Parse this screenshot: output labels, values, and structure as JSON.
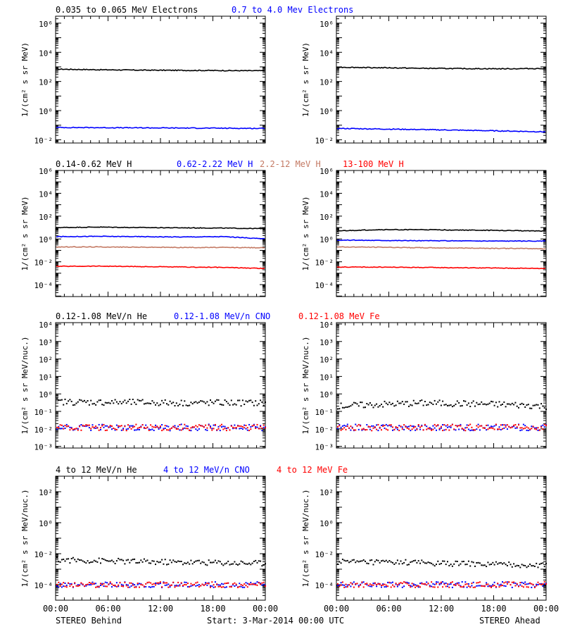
{
  "colors": {
    "black": "#000000",
    "blue": "#0000ff",
    "tan": "#c47a64",
    "red": "#ff0000"
  },
  "footer": {
    "left": "STEREO Behind",
    "center": "Start:  3-Mar-2014 00:00 UTC",
    "right": "STEREO Ahead"
  },
  "x_ticks": [
    "00:00",
    "06:00",
    "12:00",
    "18:00",
    "00:00"
  ],
  "chart_data": [
    {
      "id": "electrons",
      "type": "line",
      "log_y": true,
      "ylabel": "1/(cm² s sr MeV)",
      "ylim": [
        0.006,
        3000000
      ],
      "y_ticks": [
        {
          "v": 0.01,
          "label": "10⁻²"
        },
        {
          "v": 1,
          "label": "10⁰"
        },
        {
          "v": 100,
          "label": "10²"
        },
        {
          "v": 10000,
          "label": "10⁴"
        },
        {
          "v": 1000000,
          "label": "10⁶"
        }
      ],
      "series": [
        {
          "name": "0.035 to 0.065 MeV Electrons",
          "color": "#000000",
          "behind": [
            700,
            640,
            600,
            580,
            560,
            540
          ],
          "ahead": [
            950,
            880,
            800,
            760,
            740,
            780
          ]
        },
        {
          "name": "0.7 to 4.0 Mev Electrons",
          "color": "#0000ff",
          "behind": [
            0.07,
            0.068,
            0.066,
            0.064,
            0.062,
            0.06
          ],
          "ahead": [
            0.06,
            0.055,
            0.05,
            0.045,
            0.04,
            0.035
          ]
        }
      ]
    },
    {
      "id": "protons",
      "type": "line",
      "log_y": true,
      "ylabel": "1/(cm² s sr MeV)",
      "ylim": [
        9e-06,
        1000000
      ],
      "y_ticks": [
        {
          "v": 0.0001,
          "label": "10⁻⁴"
        },
        {
          "v": 0.01,
          "label": "10⁻²"
        },
        {
          "v": 1,
          "label": "10⁰"
        },
        {
          "v": 100,
          "label": "10²"
        },
        {
          "v": 10000,
          "label": "10⁴"
        },
        {
          "v": 1000000,
          "label": "10⁶"
        }
      ],
      "series": [
        {
          "name": "0.14-0.62 MeV H",
          "color": "#000000",
          "behind": [
            10,
            11,
            10,
            9.5,
            9,
            8
          ],
          "ahead": [
            5,
            6.5,
            6.5,
            6,
            5.5,
            5
          ]
        },
        {
          "name": "0.62-2.22 MeV H",
          "color": "#0000ff",
          "behind": [
            1.6,
            1.7,
            1.6,
            1.5,
            1.6,
            1.0
          ],
          "ahead": [
            0.8,
            0.75,
            0.7,
            0.68,
            0.66,
            0.65
          ]
        },
        {
          "name": "2.2-12 MeV H",
          "color": "#c47a64",
          "behind": [
            0.2,
            0.2,
            0.19,
            0.18,
            0.18,
            0.17
          ],
          "ahead": [
            0.2,
            0.19,
            0.17,
            0.16,
            0.15,
            0.14
          ]
        },
        {
          "name": "13-100 MeV H",
          "color": "#ff0000",
          "behind": [
            0.004,
            0.0042,
            0.0038,
            0.0035,
            0.0032,
            0.0026
          ],
          "ahead": [
            0.0035,
            0.0034,
            0.0032,
            0.003,
            0.0028,
            0.0026
          ]
        }
      ]
    },
    {
      "id": "heavy_low",
      "type": "scatter",
      "log_y": true,
      "ylabel": "1/(cm² s sr MeV/nuc.)",
      "ylim": [
        0.0008,
        12000
      ],
      "y_ticks": [
        {
          "v": 0.001,
          "label": "10⁻³"
        },
        {
          "v": 0.01,
          "label": "10⁻²"
        },
        {
          "v": 0.1,
          "label": "10⁻¹"
        },
        {
          "v": 1,
          "label": "10⁰"
        },
        {
          "v": 10,
          "label": "10¹"
        },
        {
          "v": 100,
          "label": "10²"
        },
        {
          "v": 1000,
          "label": "10³"
        },
        {
          "v": 10000,
          "label": "10⁴"
        }
      ],
      "series": [
        {
          "name": "0.12-1.08 MeV/n He",
          "color": "#000000",
          "behind": [
            0.35,
            0.33,
            0.32,
            0.3,
            0.31,
            0.3
          ],
          "ahead": [
            0.2,
            0.25,
            0.3,
            0.28,
            0.25,
            0.2
          ]
        },
        {
          "name": "0.12-1.08 MeV/n CNO",
          "color": "#0000ff",
          "behind": [
            0.012,
            0.012,
            0.012,
            0.012,
            0.012,
            0.012
          ],
          "ahead": [
            0.012,
            0.012,
            0.012,
            0.012,
            0.012,
            0.012
          ]
        },
        {
          "name": "0.12-1.08 MeV Fe",
          "color": "#ff0000",
          "behind": [
            0.012,
            0.012,
            0.012,
            0.012,
            0.012,
            0.012
          ],
          "ahead": [
            0.012,
            0.012,
            0.012,
            0.012,
            0.012,
            0.012
          ]
        }
      ]
    },
    {
      "id": "heavy_high",
      "type": "scatter",
      "log_y": true,
      "ylabel": "1/(cm² s sr MeV/nuc.)",
      "ylim": [
        1e-05,
        1000
      ],
      "y_ticks": [
        {
          "v": 0.0001,
          "label": "10⁻⁴"
        },
        {
          "v": 0.01,
          "label": "10⁻²"
        },
        {
          "v": 1,
          "label": "10⁰"
        },
        {
          "v": 100,
          "label": "10²"
        }
      ],
      "series": [
        {
          "name": "4 to 12 MeV/n He",
          "color": "#000000",
          "behind": [
            0.004,
            0.0035,
            0.003,
            0.0028,
            0.0026,
            0.0024
          ],
          "ahead": [
            0.003,
            0.0028,
            0.0026,
            0.0022,
            0.002,
            0.0018
          ]
        },
        {
          "name": "4 to 12 MeV/n CNO",
          "color": "#0000ff",
          "behind": [
            0.0001,
            0.0001,
            0.0001,
            0.0001,
            0.0001,
            0.0001
          ],
          "ahead": [
            0.0001,
            0.0001,
            0.0001,
            0.0001,
            0.0001,
            0.0001
          ]
        },
        {
          "name": "4 to 12 MeV Fe",
          "color": "#ff0000",
          "behind": [
            0.0001,
            0.0001,
            0.0001,
            0.0001,
            0.0001,
            0.0001
          ],
          "ahead": [
            0.0001,
            0.0001,
            0.0001,
            0.0001,
            0.0001,
            0.0001
          ]
        }
      ]
    }
  ]
}
